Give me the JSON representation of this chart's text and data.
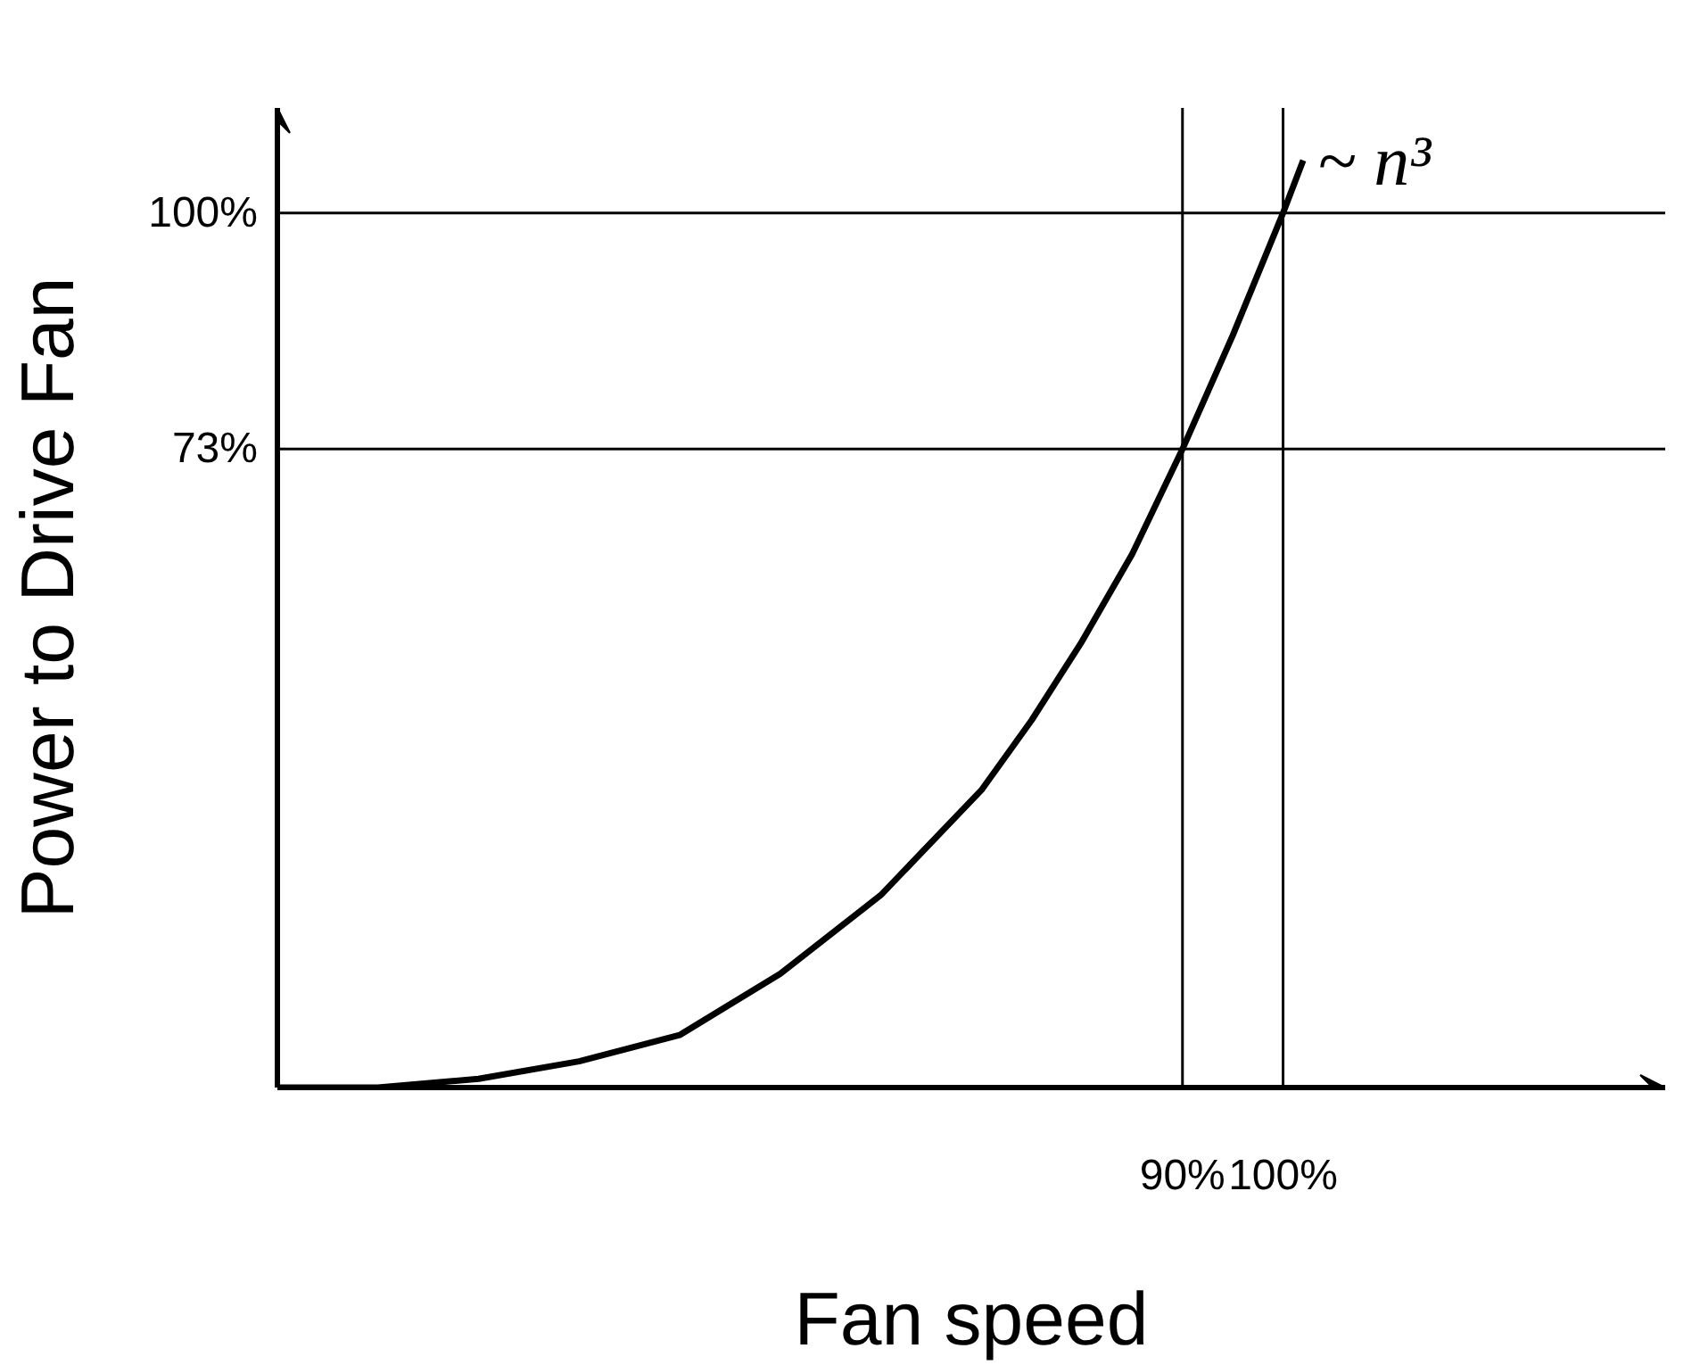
{
  "chart_data": {
    "type": "line",
    "xlabel": "Fan speed",
    "ylabel": "Power to Drive Fan",
    "x": [
      0,
      10,
      20,
      30,
      40,
      50,
      60,
      70,
      75,
      80,
      85,
      90,
      95,
      100,
      102
    ],
    "series": [
      {
        "color": "#000000",
        "values": [
          0,
          0,
          1,
          3,
          6,
          13,
          22,
          34,
          42,
          51,
          61,
          73,
          86,
          100,
          106
        ]
      }
    ],
    "xlim": [
      0,
      138
    ],
    "ylim": [
      0,
      112
    ],
    "xticks": [
      {
        "value": 90,
        "label": "90%"
      },
      {
        "value": 100,
        "label": "100%"
      }
    ],
    "yticks": [
      {
        "value": 73,
        "label": "73%"
      },
      {
        "value": 100,
        "label": "100%"
      }
    ],
    "ref_lines": [
      {
        "axis": "x",
        "value": 90,
        "color": "#000000"
      },
      {
        "axis": "x",
        "value": 100,
        "color": "#000000"
      },
      {
        "axis": "y",
        "value": 73,
        "color": "#000000"
      },
      {
        "axis": "y",
        "value": 100,
        "color": "#000000"
      }
    ],
    "annotations": [
      {
        "text": "~ n³",
        "x": 102,
        "y": 106
      }
    ],
    "marker": "none",
    "line_style": "solid"
  }
}
